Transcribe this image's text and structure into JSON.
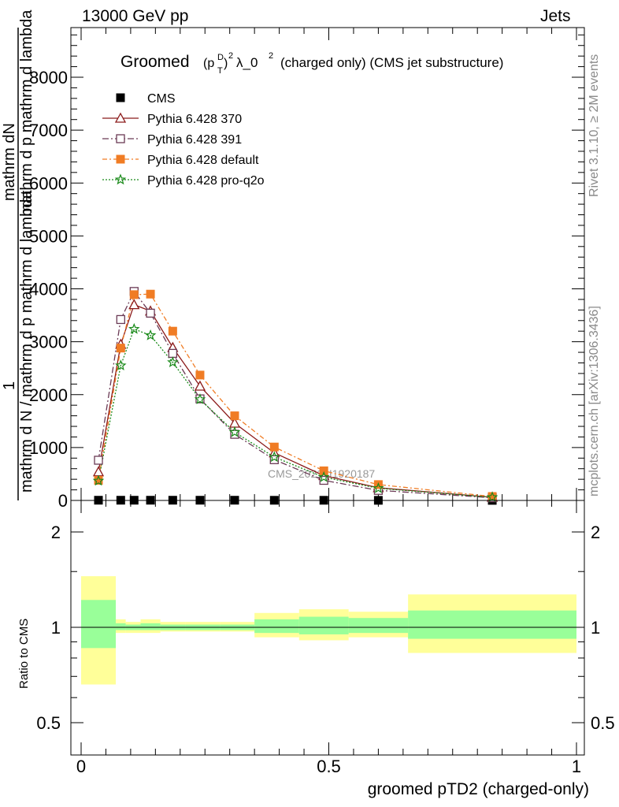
{
  "header": {
    "left": "13000 GeV pp",
    "right": "Jets"
  },
  "side_labels": {
    "rivet": "Rivet 3.1.10, ≥ 2M events",
    "mcplots": "mcplots.cern.ch [arXiv:1306.3436]"
  },
  "watermark": "CMS_2021_I1920187",
  "chart_data": [
    {
      "type": "line",
      "title_parts": {
        "pre": "Groomed",
        "math": "(p",
        "math_sup": "D",
        "math_sub": "T",
        "math_post": ")",
        "math_sq": "2",
        "lambda": "λ_0",
        "lambda_sup": "2",
        "post": "(charged only) (CMS jet substructure)"
      },
      "ylabel_parts": {
        "one": "1",
        "den1": "mathrm d N",
        "num": "mathrm d",
        "num_sup": "2",
        "num_rest": "N",
        "den2": "mathrm d p",
        "den2_sub": "T",
        "den2_rest": "mathrm d lambda"
      },
      "ylabel_visible": {
        "a": "mathrm dN",
        "b": "mathrm d p mathrm d lambda",
        "c": "1",
        "d": "mathrm d N / mathrm d p mathrm d lambda"
      },
      "xlim": [
        0,
        1
      ],
      "ylim": [
        0,
        9000
      ],
      "y_ticks": [
        "0",
        "1000",
        "2000",
        "3000",
        "4000",
        "5000",
        "6000",
        "7000",
        "8000"
      ],
      "y_tick_values": [
        0,
        1000,
        2000,
        3000,
        4000,
        5000,
        6000,
        7000,
        8000
      ],
      "x": [
        0.035,
        0.08,
        0.107,
        0.14,
        0.185,
        0.24,
        0.31,
        0.39,
        0.49,
        0.6,
        0.83
      ],
      "cms": [
        4,
        4,
        4,
        4,
        4,
        4,
        4,
        3,
        3,
        2,
        1
      ],
      "series": [
        {
          "name": "CMS",
          "color": "#000000",
          "marker": "square-filled",
          "dash": "none",
          "values": [
            4,
            4,
            4,
            4,
            4,
            4,
            4,
            3,
            3,
            2,
            1
          ]
        },
        {
          "name": "Pythia 6.428 370",
          "color": "#8b1a1a",
          "marker": "triangle-open",
          "dash": "solid",
          "values": [
            540,
            2950,
            3700,
            3580,
            2890,
            2160,
            1460,
            900,
            470,
            240,
            60
          ]
        },
        {
          "name": "Pythia 6.428 391",
          "color": "#6b3a55",
          "marker": "square-open",
          "dash": "dashdot",
          "values": [
            760,
            3420,
            3950,
            3540,
            2780,
            1920,
            1250,
            770,
            380,
            190,
            50
          ]
        },
        {
          "name": "Pythia 6.428 default",
          "color": "#f07c24",
          "marker": "square-filled",
          "dash": "dashdot2",
          "values": [
            380,
            2880,
            3890,
            3900,
            3200,
            2370,
            1600,
            1010,
            560,
            300,
            75
          ]
        },
        {
          "name": "Pythia 6.428 pro-q2o",
          "color": "#1a8a1a",
          "marker": "star",
          "dash": "dotted",
          "values": [
            370,
            2550,
            3240,
            3120,
            2610,
            1910,
            1290,
            820,
            440,
            230,
            60
          ]
        }
      ]
    },
    {
      "type": "area",
      "ylabel": "Ratio to CMS",
      "xlabel": "groomed pTD2 (charged-only)",
      "xlim": [
        0,
        1
      ],
      "ylim": [
        0.4,
        2.3
      ],
      "scale": "log",
      "y_ticks": [
        "0.5",
        "1",
        "2"
      ],
      "y_tick_values": [
        0.5,
        1,
        2
      ],
      "x_ticks": [
        "0",
        "0.5",
        "1"
      ],
      "x_tick_values": [
        0,
        0.5,
        1
      ],
      "bins": [
        0,
        0.07,
        0.09,
        0.12,
        0.16,
        0.21,
        0.28,
        0.35,
        0.44,
        0.54,
        0.66,
        1.0
      ],
      "band_outer_low": [
        0.66,
        0.96,
        0.96,
        0.96,
        0.97,
        0.97,
        0.97,
        0.93,
        0.91,
        0.93,
        0.83,
        0.83
      ],
      "band_outer_high": [
        1.45,
        1.06,
        1.04,
        1.06,
        1.04,
        1.04,
        1.04,
        1.11,
        1.14,
        1.12,
        1.27,
        1.27
      ],
      "band_inner_low": [
        0.86,
        0.98,
        0.98,
        0.98,
        0.98,
        0.98,
        0.98,
        0.96,
        0.95,
        0.96,
        0.92,
        0.92
      ],
      "band_inner_high": [
        1.22,
        1.03,
        1.02,
        1.03,
        1.02,
        1.02,
        1.02,
        1.06,
        1.08,
        1.07,
        1.13,
        1.13
      ],
      "colors": {
        "outer": "#ffff99",
        "inner": "#99ff99"
      }
    }
  ]
}
